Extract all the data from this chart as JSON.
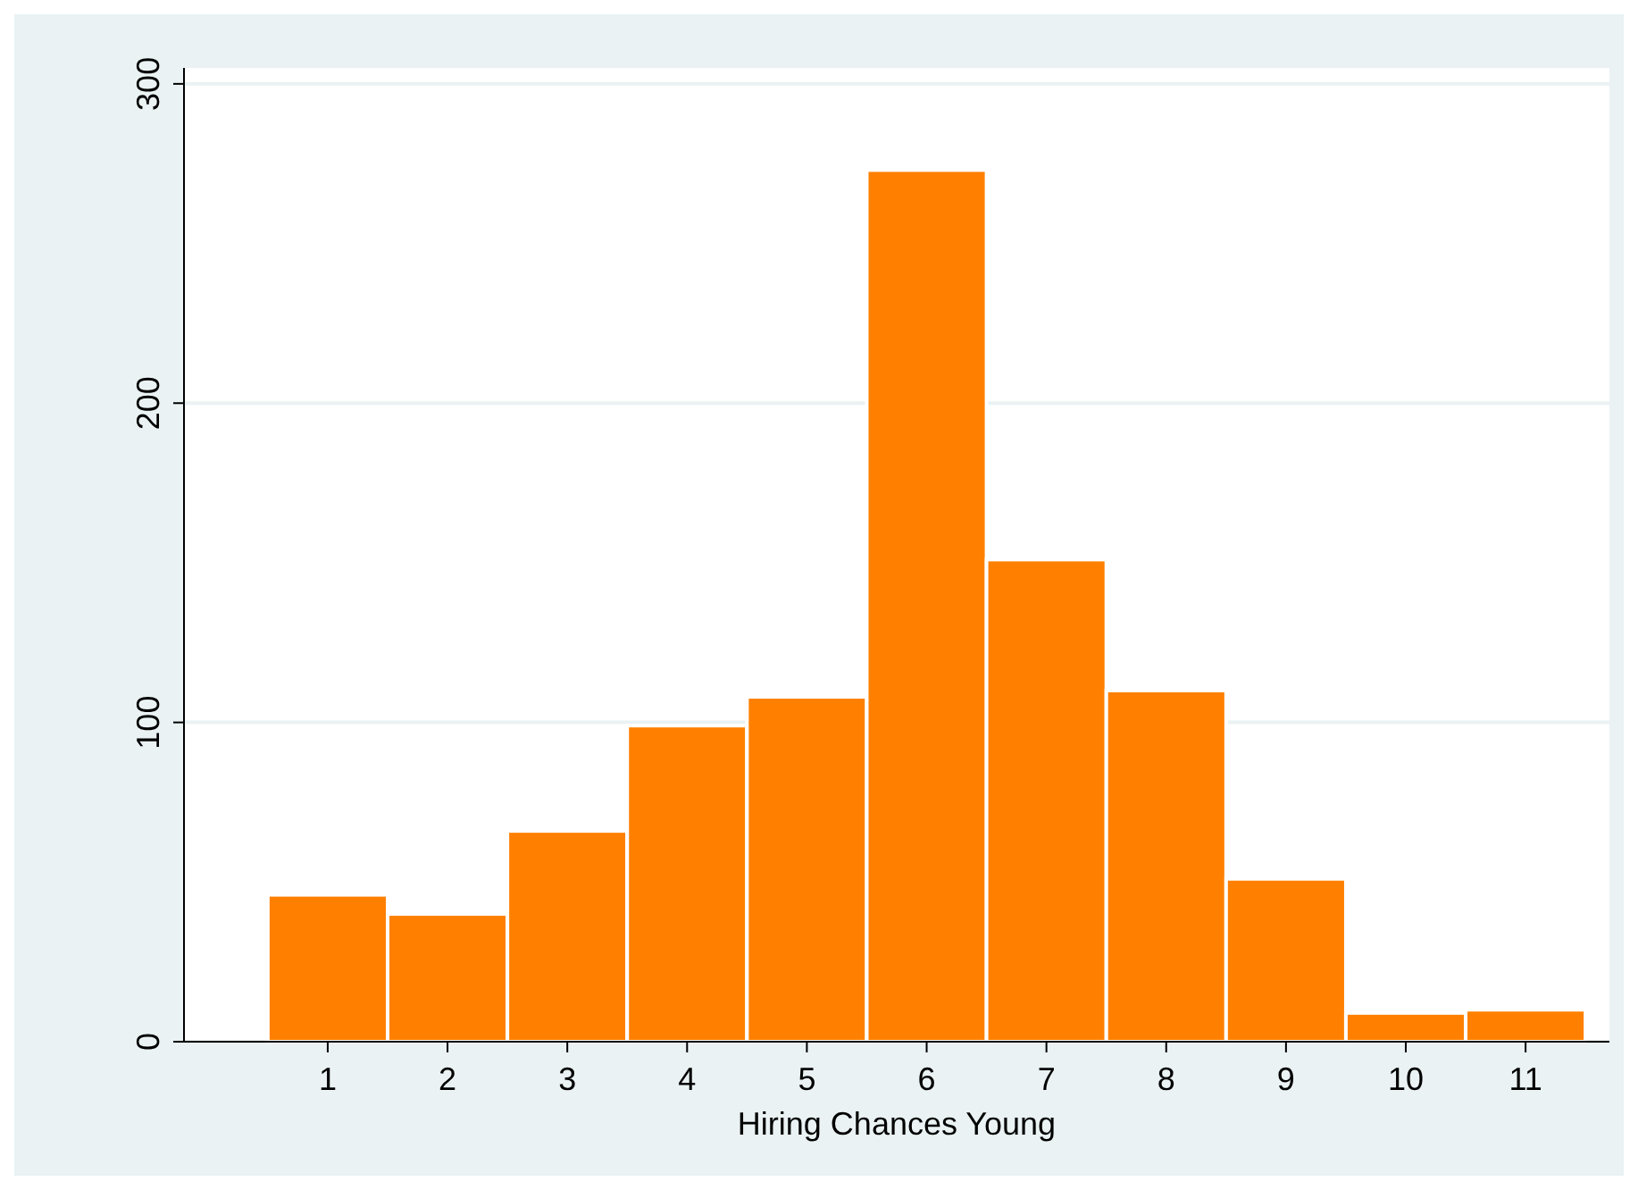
{
  "chart_data": {
    "type": "histogram",
    "xlabel": "Hiring Chances Young",
    "bins": [
      0.5,
      1.5,
      2.5,
      3.5,
      4.5,
      5.5,
      6.5,
      7.5,
      8.5,
      9.5,
      10.5,
      11.5
    ],
    "values": [
      46,
      40,
      66,
      99,
      108,
      273,
      151,
      110,
      51,
      9,
      10
    ],
    "color": "#ff8000",
    "xlim": [
      -0.2,
      11.7
    ],
    "xticks": [
      1,
      2,
      3,
      4,
      5,
      6,
      7,
      8,
      9,
      10,
      11
    ],
    "ylim": [
      0,
      305
    ],
    "yticks": [
      0,
      100,
      200,
      300
    ],
    "grid": "y"
  }
}
